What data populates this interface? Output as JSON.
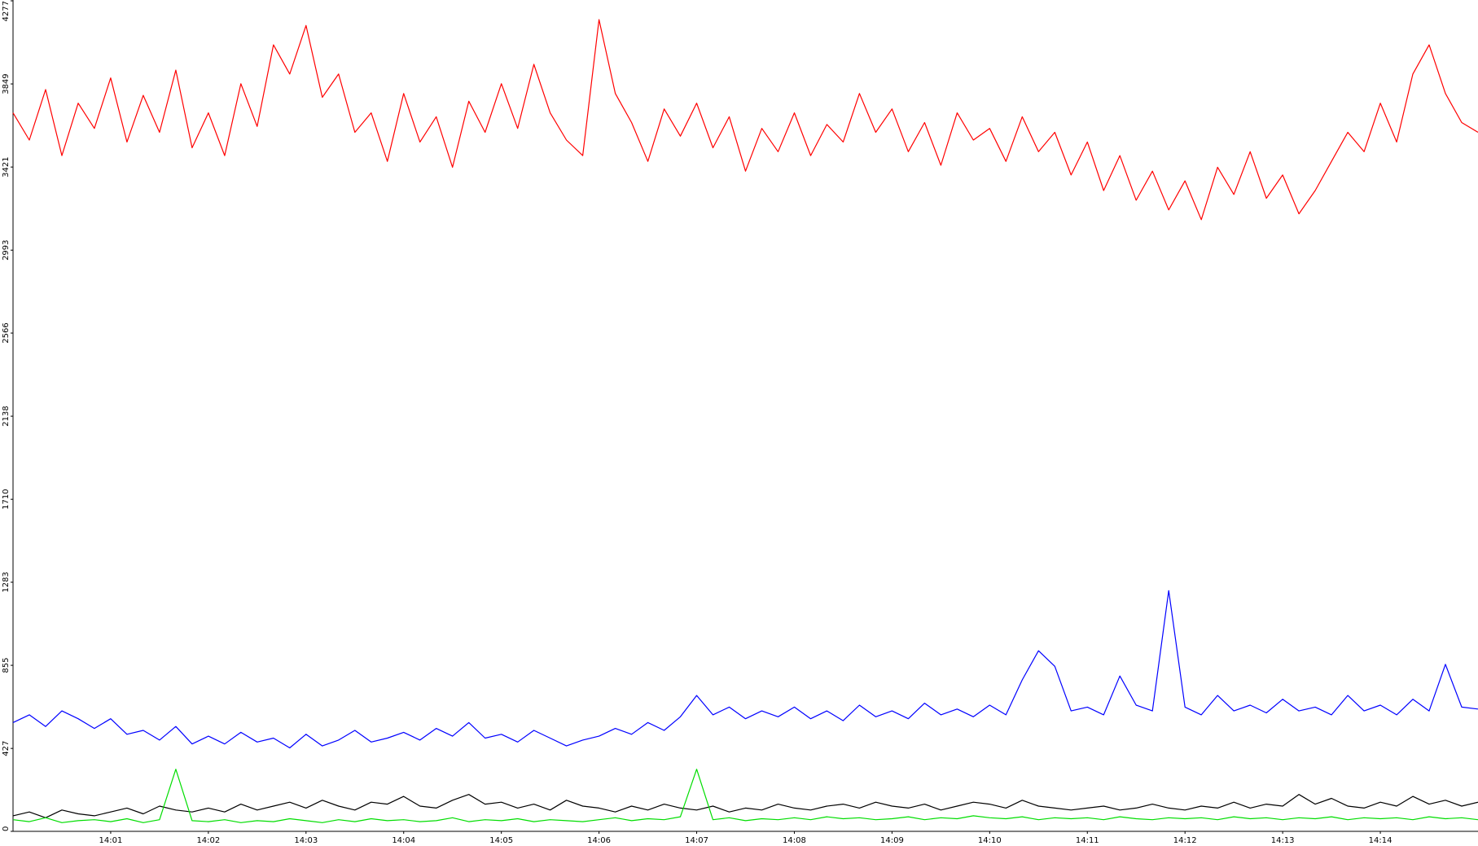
{
  "chart_data": {
    "type": "line",
    "categories": [
      null,
      null,
      null,
      null,
      null,
      null,
      "14:01",
      null,
      null,
      null,
      null,
      null,
      "14:02",
      null,
      null,
      null,
      null,
      null,
      "14:03",
      null,
      null,
      null,
      null,
      null,
      "14:04",
      null,
      null,
      null,
      null,
      null,
      "14:05",
      null,
      null,
      null,
      null,
      null,
      "14:06",
      null,
      null,
      null,
      null,
      null,
      "14:07",
      null,
      null,
      null,
      null,
      null,
      "14:08",
      null,
      null,
      null,
      null,
      null,
      "14:09",
      null,
      null,
      null,
      null,
      null,
      "14:10",
      null,
      null,
      null,
      null,
      null,
      "14:11",
      null,
      null,
      null,
      null,
      null,
      "14:12",
      null,
      null,
      null,
      null,
      null,
      "14:13",
      null,
      null,
      null,
      null,
      null,
      "14:14",
      null,
      null,
      null,
      null,
      null,
      null
    ],
    "ylim": [
      0,
      4277
    ],
    "yticks": [
      0,
      427,
      855,
      1283,
      1710,
      2138,
      2566,
      2993,
      3421,
      3849,
      4277
    ],
    "grid": false,
    "series": [
      {
        "color": "#ff0000",
        "values": [
          3700,
          3560,
          3820,
          3480,
          3750,
          3620,
          3880,
          3550,
          3790,
          3600,
          3920,
          3520,
          3700,
          3480,
          3850,
          3630,
          4050,
          3900,
          4150,
          3780,
          3900,
          3600,
          3700,
          3450,
          3800,
          3550,
          3680,
          3420,
          3760,
          3600,
          3850,
          3620,
          3950,
          3700,
          3560,
          3480,
          4180,
          3800,
          3650,
          3450,
          3720,
          3580,
          3750,
          3520,
          3680,
          3400,
          3620,
          3500,
          3700,
          3480,
          3640,
          3550,
          3800,
          3600,
          3720,
          3500,
          3650,
          3430,
          3700,
          3560,
          3620,
          3450,
          3680,
          3500,
          3600,
          3380,
          3550,
          3300,
          3480,
          3250,
          3400,
          3200,
          3350,
          3150,
          3420,
          3280,
          3500,
          3260,
          3380,
          3180,
          3300,
          3450,
          3600,
          3500,
          3750,
          3550,
          3900,
          4050,
          3800,
          3650,
          3600
        ]
      },
      {
        "color": "#0000ff",
        "values": [
          560,
          600,
          540,
          620,
          580,
          530,
          580,
          500,
          520,
          470,
          540,
          450,
          490,
          450,
          510,
          460,
          480,
          430,
          500,
          440,
          470,
          520,
          460,
          480,
          510,
          470,
          530,
          490,
          560,
          480,
          500,
          460,
          520,
          480,
          440,
          470,
          490,
          530,
          500,
          560,
          520,
          590,
          700,
          600,
          640,
          580,
          620,
          590,
          640,
          580,
          620,
          570,
          650,
          590,
          620,
          580,
          660,
          600,
          630,
          590,
          650,
          600,
          780,
          930,
          850,
          620,
          640,
          600,
          800,
          650,
          620,
          1240,
          640,
          600,
          700,
          620,
          650,
          610,
          680,
          620,
          640,
          600,
          700,
          620,
          650,
          600,
          680,
          620,
          860,
          640,
          630
        ]
      },
      {
        "color": "#000000",
        "values": [
          80,
          100,
          70,
          110,
          90,
          80,
          100,
          120,
          90,
          130,
          110,
          100,
          120,
          100,
          140,
          110,
          130,
          150,
          120,
          160,
          130,
          110,
          150,
          140,
          180,
          130,
          120,
          160,
          190,
          140,
          150,
          120,
          140,
          110,
          160,
          130,
          120,
          100,
          130,
          110,
          140,
          120,
          110,
          130,
          100,
          120,
          110,
          140,
          120,
          110,
          130,
          140,
          120,
          150,
          130,
          120,
          140,
          110,
          130,
          150,
          140,
          120,
          160,
          130,
          120,
          110,
          120,
          130,
          110,
          120,
          140,
          120,
          110,
          130,
          120,
          150,
          120,
          140,
          130,
          190,
          140,
          170,
          130,
          120,
          150,
          130,
          180,
          140,
          160,
          130,
          150
        ]
      },
      {
        "color": "#00dd00",
        "values": [
          60,
          50,
          70,
          45,
          55,
          60,
          50,
          65,
          45,
          60,
          320,
          55,
          50,
          60,
          45,
          55,
          50,
          65,
          55,
          45,
          60,
          50,
          65,
          55,
          60,
          50,
          55,
          70,
          50,
          60,
          55,
          65,
          50,
          60,
          55,
          50,
          60,
          70,
          55,
          65,
          60,
          75,
          320,
          60,
          70,
          55,
          65,
          60,
          70,
          60,
          75,
          65,
          70,
          60,
          65,
          75,
          60,
          70,
          65,
          80,
          70,
          65,
          75,
          60,
          70,
          65,
          70,
          60,
          75,
          65,
          60,
          70,
          65,
          70,
          60,
          75,
          65,
          70,
          60,
          70,
          65,
          75,
          60,
          70,
          65,
          70,
          60,
          75,
          65,
          70,
          60
        ]
      }
    ]
  }
}
